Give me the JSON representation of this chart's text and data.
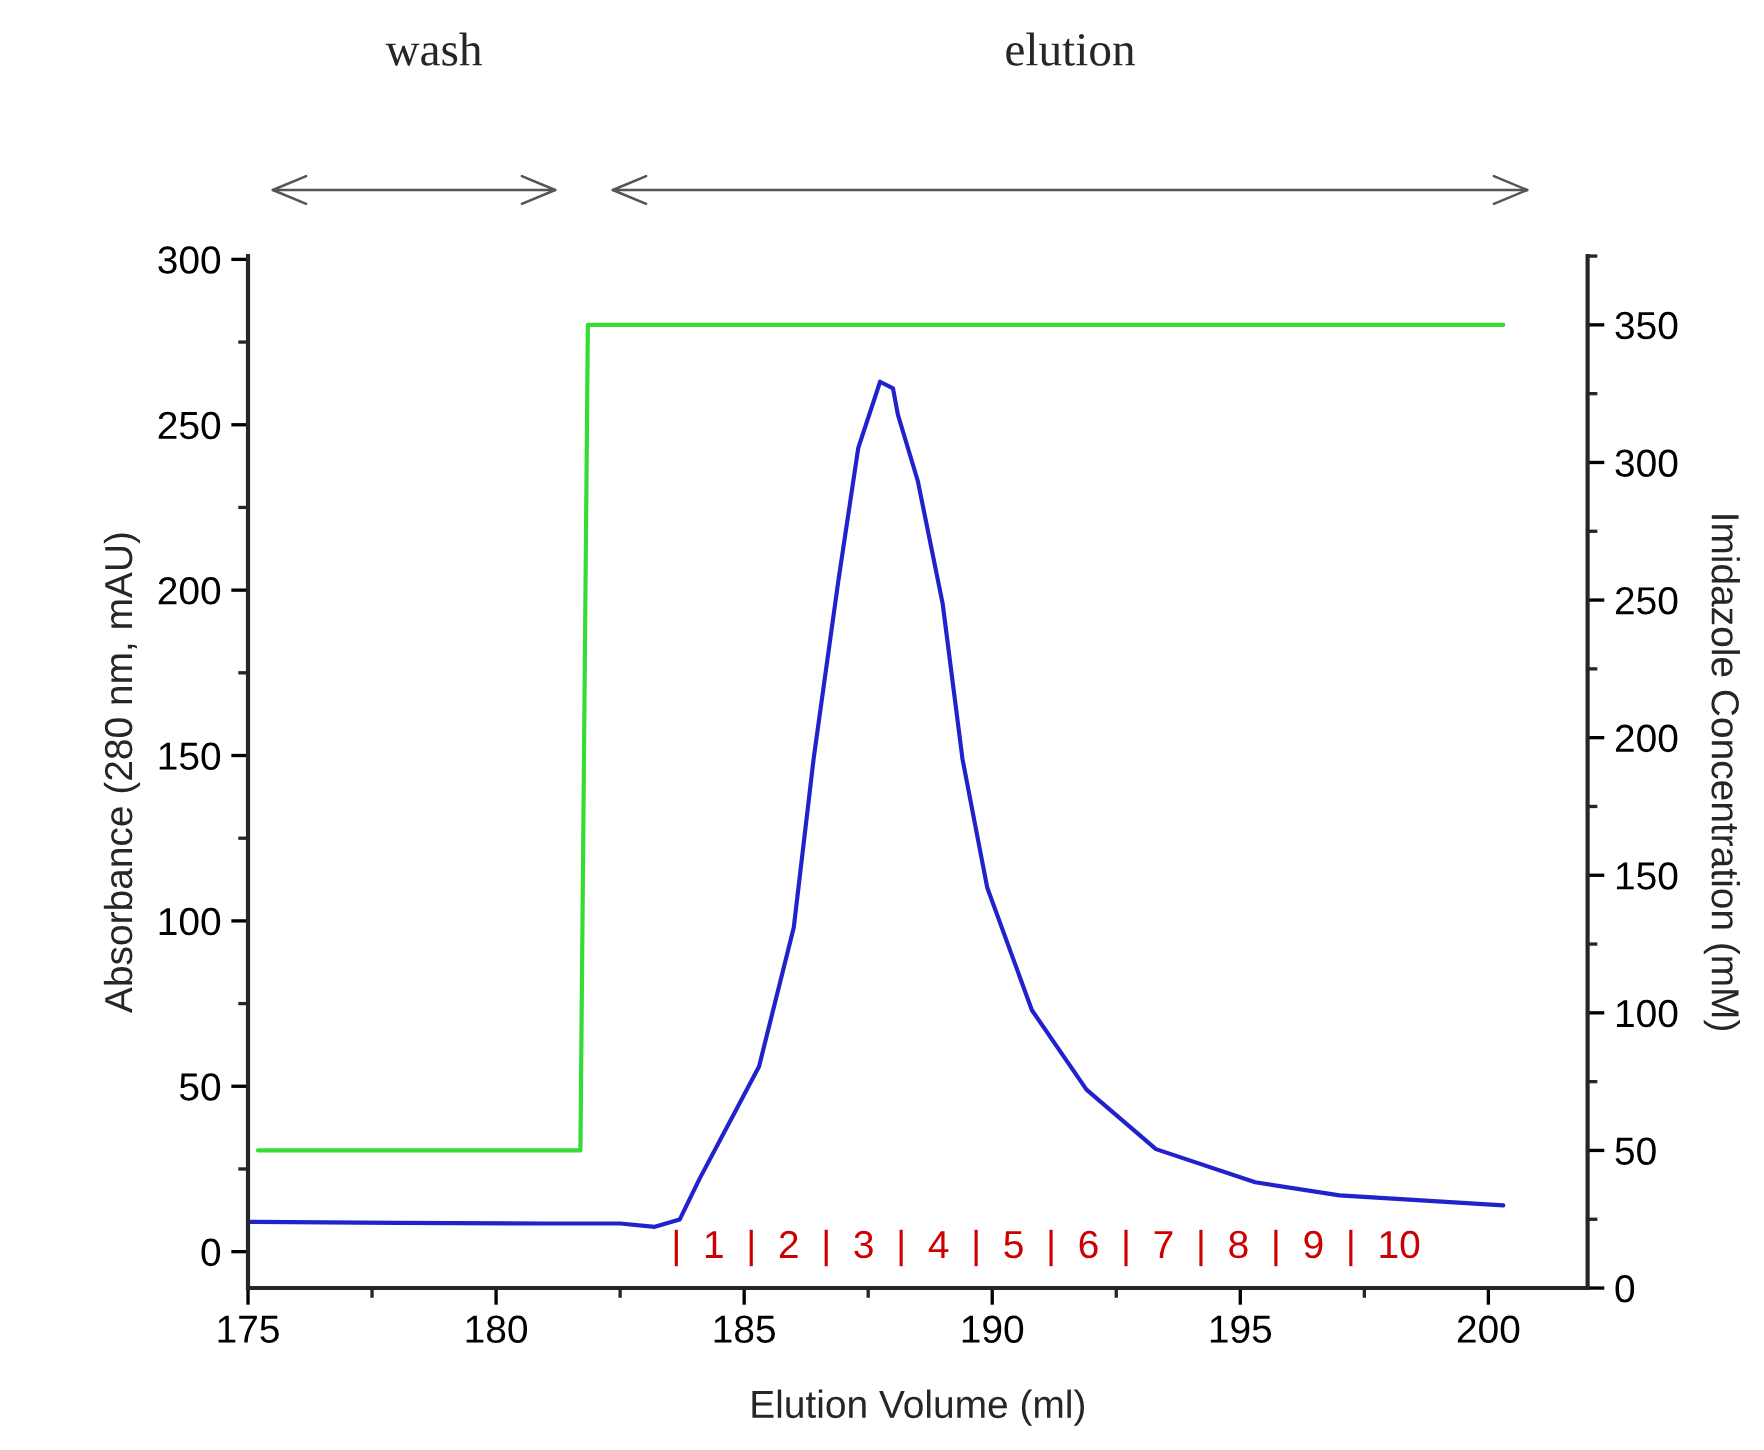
{
  "chart_data": {
    "type": "line",
    "xlabel": "Elution Volume (ml)",
    "ylabel": "Absorbance (280 nm, mAU)",
    "y2label": "Imidazole Concentration (mM)",
    "series": [
      {
        "color": "#2222cc",
        "x": [
          175.0,
          178.0,
          181.0,
          182.5,
          183.2,
          183.7,
          184.1,
          184.7,
          185.3,
          186.0,
          186.4,
          186.9,
          187.3,
          187.74,
          188.0,
          188.1,
          188.5,
          189.0,
          189.4,
          189.9,
          190.8,
          191.9,
          193.3,
          195.3,
          197.0,
          200.3
        ],
        "values": [
          9,
          8.7,
          8.5,
          8.5,
          7.5,
          9.7,
          22,
          39,
          56,
          98,
          149,
          203,
          243,
          263,
          261,
          253,
          233,
          196,
          149,
          110,
          73,
          49,
          31,
          21,
          17,
          14
        ]
      },
      {
        "color": "#33dd33",
        "axis": "y2",
        "x": [
          175.2,
          181.7,
          181.85,
          200.3
        ],
        "values": [
          50,
          50,
          350,
          350
        ]
      }
    ],
    "xlim": [
      175,
      202
    ],
    "xticks": [
      175,
      180,
      185,
      190,
      195,
      200
    ],
    "ylim": [
      -11,
      301
    ],
    "yticks": [
      0,
      50,
      100,
      150,
      200,
      250,
      300
    ],
    "y2lim": [
      0,
      375
    ],
    "y2ticks": [
      0,
      50,
      100,
      150,
      200,
      250,
      300,
      350
    ],
    "annotations": [
      "wash",
      "elution",
      "|  1  |  2  |  3  |  4  |  5  |  6  |  7  |  8  |  9  |  10"
    ],
    "grid": false,
    "legend": false,
    "marker": "none",
    "line_style": "solid"
  }
}
